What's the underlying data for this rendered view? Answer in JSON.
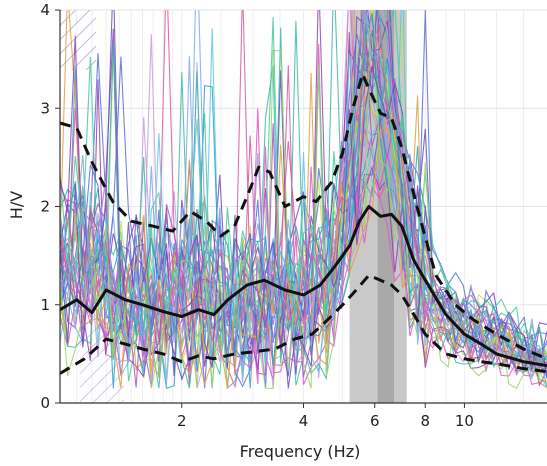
{
  "chart_data": {
    "type": "line",
    "title": "",
    "xlabel": "Frequency (Hz)",
    "ylabel": "H/V",
    "x_scale": "log",
    "xlim": [
      1.0,
      16.0
    ],
    "ylim": [
      0,
      4
    ],
    "x_ticks": [
      2,
      4,
      6,
      8,
      10
    ],
    "y_ticks": [
      0,
      1,
      2,
      3,
      4
    ],
    "grid": true,
    "legend": "none",
    "peak_band": {
      "x_start": 5.2,
      "x_end": 7.2,
      "inner_start": 6.1,
      "inner_end": 6.7
    },
    "series": [
      {
        "style": "solid-black",
        "x": [
          1.0,
          1.1,
          1.2,
          1.3,
          1.45,
          1.6,
          1.8,
          2.0,
          2.2,
          2.4,
          2.6,
          2.9,
          3.2,
          3.6,
          4.0,
          4.4,
          4.8,
          5.2,
          5.5,
          5.8,
          6.2,
          6.6,
          7.0,
          7.5,
          8.0,
          9.0,
          10.0,
          11.0,
          12.0,
          14.0,
          16.0
        ],
        "values": [
          0.95,
          1.05,
          0.92,
          1.15,
          1.05,
          1.0,
          0.93,
          0.88,
          0.95,
          0.9,
          1.05,
          1.2,
          1.25,
          1.15,
          1.1,
          1.2,
          1.4,
          1.6,
          1.85,
          2.0,
          1.9,
          1.92,
          1.8,
          1.45,
          1.25,
          0.9,
          0.7,
          0.6,
          0.5,
          0.42,
          0.38
        ]
      },
      {
        "style": "dashed-black",
        "x": [
          1.0,
          1.1,
          1.2,
          1.35,
          1.5,
          1.7,
          1.9,
          2.1,
          2.3,
          2.5,
          2.7,
          2.9,
          3.1,
          3.3,
          3.6,
          4.0,
          4.3,
          4.7,
          5.0,
          5.3,
          5.6,
          5.8,
          6.2,
          6.6,
          7.0,
          7.3,
          7.8,
          8.5,
          9.5,
          10.5,
          12.0,
          14.0,
          16.0
        ],
        "values": [
          2.85,
          2.8,
          2.45,
          2.05,
          1.85,
          1.8,
          1.75,
          1.95,
          1.85,
          1.7,
          1.8,
          2.1,
          2.4,
          2.35,
          2.0,
          2.1,
          2.05,
          2.25,
          2.55,
          3.0,
          3.35,
          3.2,
          2.95,
          2.9,
          2.6,
          2.3,
          1.85,
          1.3,
          1.0,
          0.85,
          0.7,
          0.55,
          0.45
        ]
      },
      {
        "style": "dashed-black",
        "x": [
          1.0,
          1.15,
          1.3,
          1.45,
          1.6,
          1.8,
          2.0,
          2.2,
          2.4,
          2.7,
          3.0,
          3.4,
          3.8,
          4.2,
          4.6,
          5.0,
          5.4,
          5.8,
          6.2,
          6.6,
          7.0,
          7.5,
          8.0,
          9.0,
          10.0,
          11.0,
          12.0,
          14.0,
          16.0
        ],
        "values": [
          0.3,
          0.45,
          0.65,
          0.6,
          0.55,
          0.5,
          0.42,
          0.48,
          0.45,
          0.5,
          0.52,
          0.55,
          0.65,
          0.7,
          0.85,
          1.0,
          1.15,
          1.3,
          1.25,
          1.2,
          1.1,
          0.9,
          0.7,
          0.5,
          0.45,
          0.42,
          0.4,
          0.35,
          0.32
        ]
      }
    ]
  }
}
